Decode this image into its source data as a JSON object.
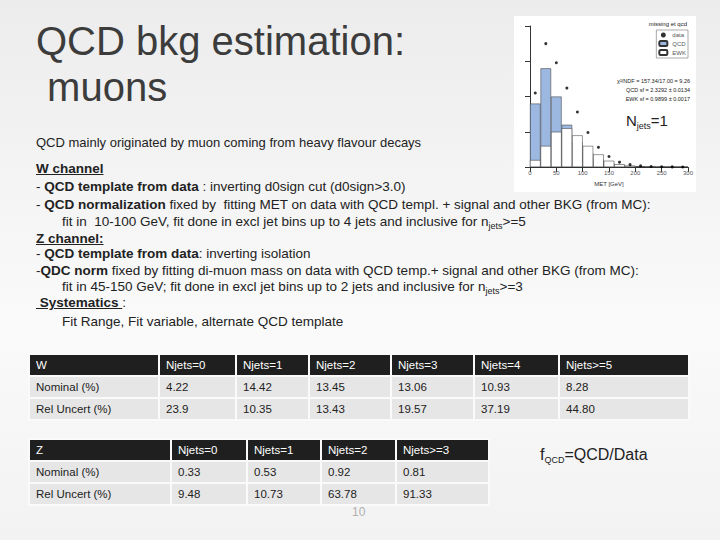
{
  "title": [
    "QCD bkg estimation:",
    " muons"
  ],
  "subtitle": "QCD mainly originated  by muon coming from heavy flavour decays",
  "inset_label": {
    "main": "N",
    "sub": "jets",
    "rest": "=1"
  },
  "body": [
    {
      "indent": false,
      "segments": [
        {
          "text": "W channel",
          "bold": true,
          "underline": true
        }
      ]
    },
    {
      "indent": false,
      "segments": [
        {
          "text": "- "
        },
        {
          "text": "QCD template from data",
          "bold": true
        },
        {
          "text": " : inverting d0sign cut (d0sign>3.0)"
        }
      ]
    },
    {
      "indent": false,
      "segments": [
        {
          "text": "- "
        },
        {
          "text": "QCD normalization",
          "bold": true
        },
        {
          "text": " fixed by  fitting MET on data with QCD templ. + signal and other BKG (from MC):"
        }
      ]
    },
    {
      "indent": true,
      "segments": [
        {
          "text": "fit in  10-100 GeV, fit done in excl jet bins up to 4 jets and inclusive for n"
        },
        {
          "text": "jets",
          "sub": true
        },
        {
          "text": ">=5"
        }
      ]
    },
    {
      "indent": false,
      "segments": [
        {
          "text": "Z channel:",
          "bold": true,
          "underline": true
        }
      ]
    },
    {
      "indent": false,
      "segments": [
        {
          "text": "- "
        },
        {
          "text": "QCD template from data",
          "bold": true
        },
        {
          "text": ": inverting isolation"
        }
      ]
    },
    {
      "indent": false,
      "segments": [
        {
          "text": "-"
        },
        {
          "text": "QDC norm",
          "bold": true
        },
        {
          "text": " fixed by fitting di-muon mass on data with QCD temp.+ signal and other BKG (from MC):"
        }
      ]
    },
    {
      "indent": true,
      "segments": [
        {
          "text": "fit in 45-150 GeV; fit done in excl jet bins up to 2 jets and inclusive for n"
        },
        {
          "text": "jets",
          "sub": true
        },
        {
          "text": ">=3"
        }
      ]
    },
    {
      "indent": false,
      "segments": [
        {
          "text": " Systematics ",
          "bold": true,
          "underline": true
        },
        {
          "text": ":"
        }
      ]
    },
    {
      "indent": true,
      "segments": [
        {
          "text": "Fit Range, Fit variable, alternate QCD template"
        }
      ]
    }
  ],
  "table_w": {
    "header": [
      "W",
      "Njets=0",
      "Njets=1",
      "Njets=2",
      "Njets=3",
      "Njets=4",
      "Njets>=5"
    ],
    "rows": [
      [
        "Nominal (%)",
        "4.22",
        "14.42",
        "13.45",
        "13.06",
        "10.93",
        "8.28"
      ],
      [
        "Rel Uncert (%)",
        "23.9",
        "10.35",
        "13.43",
        "19.57",
        "37.19",
        "44.80"
      ]
    ]
  },
  "table_z": {
    "header": [
      "Z",
      "Njets=0",
      "Njets=1",
      "Njets=2",
      "Njets>=3"
    ],
    "rows": [
      [
        "Nominal (%)",
        "0.33",
        "0.53",
        "0.92",
        "0.81"
      ],
      [
        "Rel Uncert (%)",
        "9.48",
        "10.73",
        "63.78",
        "91.33"
      ]
    ]
  },
  "formula": {
    "main": "f",
    "sub": "QCD",
    "rest": "=QCD/Data"
  },
  "page_number": "10",
  "chart_data": {
    "type": "histogram",
    "title": "missing et qcd",
    "x_label": "MET [GeV]",
    "bins": [
      0,
      20,
      40,
      60,
      80,
      100,
      120,
      140,
      160,
      180,
      200,
      220,
      240,
      260,
      280,
      300
    ],
    "series": [
      {
        "name": "data",
        "type": "scatter",
        "color": "#000000",
        "values": [
          1050,
          1750,
          1480,
          1120,
          780,
          490,
          280,
          150,
          70,
          35,
          18,
          9,
          5,
          3,
          2
        ]
      },
      {
        "name": "QCD",
        "type": "bar",
        "color": "#9db8e0",
        "values": [
          900,
          1400,
          1000,
          600,
          350,
          200,
          110,
          60,
          30,
          15,
          8,
          4,
          2,
          1,
          1
        ]
      },
      {
        "name": "EWK",
        "type": "bar",
        "color": "#ffffff",
        "values": [
          100,
          300,
          500,
          550,
          450,
          300,
          180,
          90,
          40,
          20,
          10,
          5,
          3,
          2,
          1
        ]
      }
    ],
    "annotations": [
      "χ²/NDF = 157.34/17.00 = 9.26",
      "QCD sf = 2.3292 ± 0.0134",
      "EWK sf = 0.9899 ± 0.0017"
    ],
    "xlim": [
      0,
      300
    ],
    "xticks": [
      0,
      50,
      100,
      150,
      200,
      250,
      300
    ],
    "ylim": [
      0,
      2000
    ],
    "yticks": [
      0,
      500,
      1000,
      1500,
      2000
    ],
    "stacked": true,
    "legend": "top-right",
    "tick_labels": "x",
    "grid": false
  }
}
